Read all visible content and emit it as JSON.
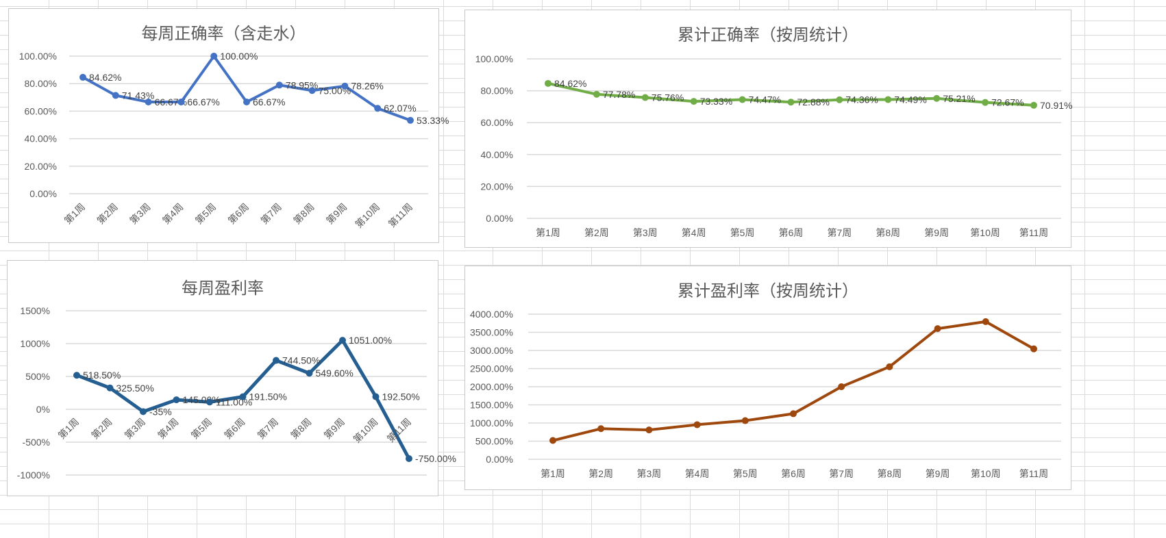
{
  "chart_data": [
    {
      "type": "line",
      "title": "每周正确率（含走水）",
      "categories": [
        "第1周",
        "第2周",
        "第3周",
        "第4周",
        "第5周",
        "第6周",
        "第7周",
        "第8周",
        "第9周",
        "第10周",
        "第11周"
      ],
      "values": [
        84.62,
        71.43,
        66.67,
        66.67,
        100.0,
        66.67,
        78.95,
        75.0,
        78.26,
        62.07,
        53.33
      ],
      "data_labels": [
        "84.62%",
        "71.43%",
        "66.67%",
        "66.67%",
        "100.00%",
        "66.67%",
        "78.95%",
        "75.00%",
        "78.26%",
        "62.07%",
        "53.33%"
      ],
      "yticks": [
        "0.00%",
        "20.00%",
        "40.00%",
        "60.00%",
        "80.00%",
        "100.00%"
      ],
      "ylim": [
        0,
        100
      ],
      "grid": true,
      "color": "#4472C4"
    },
    {
      "type": "line",
      "title": "累计正确率（按周统计）",
      "categories": [
        "第1周",
        "第2周",
        "第3周",
        "第4周",
        "第5周",
        "第6周",
        "第7周",
        "第8周",
        "第9周",
        "第10周",
        "第11周"
      ],
      "values": [
        84.62,
        77.78,
        75.76,
        73.33,
        74.47,
        72.88,
        74.36,
        74.49,
        75.21,
        72.67,
        70.91
      ],
      "data_labels": [
        "84.62%",
        "77.78%",
        "75.76%",
        "73.33%",
        "74.47%",
        "72.88%",
        "74.36%",
        "74.49%",
        "75.21%",
        "72.67%",
        "70.91%"
      ],
      "yticks": [
        "0.00%",
        "20.00%",
        "40.00%",
        "60.00%",
        "80.00%",
        "100.00%"
      ],
      "ylim": [
        0,
        100
      ],
      "grid": true,
      "color": "#70AD47"
    },
    {
      "type": "line",
      "title": "每周盈利率",
      "categories": [
        "第1周",
        "第2周",
        "第3周",
        "第4周",
        "第5周",
        "第6周",
        "第7周",
        "第8周",
        "第9周",
        "第10周",
        "第11周"
      ],
      "values": [
        518.5,
        325.5,
        -35,
        145,
        111,
        191.5,
        744.5,
        549.6,
        1051,
        192.5,
        -750
      ],
      "data_labels": [
        "518.50%",
        "325.50%",
        "-35%",
        "145.00%",
        "111.00%",
        "191.50%",
        "744.50%",
        "549.60%",
        "1051.00%",
        "192.50%",
        "-750.00%"
      ],
      "yticks": [
        "-1000%",
        "-500%",
        "0%",
        "500%",
        "1000%",
        "1500%"
      ],
      "ylim": [
        -1000,
        1500
      ],
      "grid": true,
      "color": "#255E91"
    },
    {
      "type": "line",
      "title": "累计盈利率（按周统计）",
      "categories": [
        "第1周",
        "第2周",
        "第3周",
        "第4周",
        "第5周",
        "第6周",
        "第7周",
        "第8周",
        "第9周",
        "第10周",
        "第11周"
      ],
      "values": [
        518.5,
        844,
        809,
        954,
        1065,
        1256.5,
        2001,
        2550.6,
        3601.6,
        3794.1,
        3044.1
      ],
      "yticks": [
        "0.00%",
        "500.00%",
        "1000.00%",
        "1500.00%",
        "2000.00%",
        "2500.00%",
        "3000.00%",
        "3500.00%",
        "4000.00%"
      ],
      "ylim": [
        0,
        4000
      ],
      "grid": true,
      "color": "#9E480E"
    }
  ]
}
